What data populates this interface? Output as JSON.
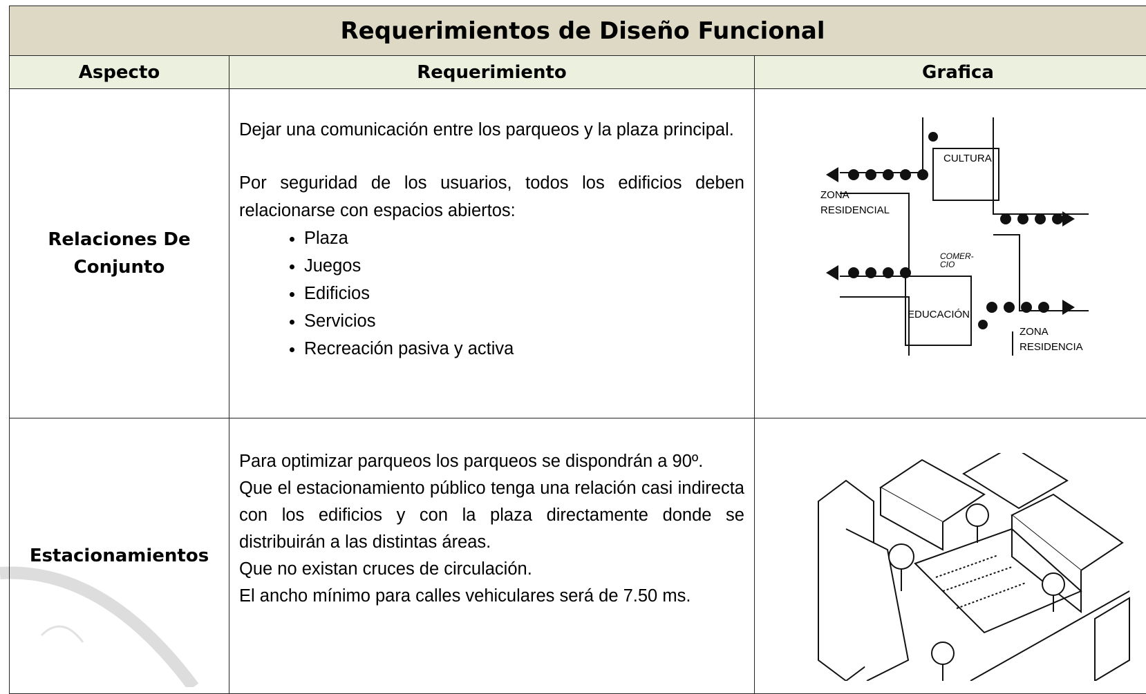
{
  "header": {
    "title": "Requerimientos de Diseño Funcional"
  },
  "table": {
    "columns": [
      "Aspecto",
      "Requerimiento",
      "Grafica"
    ],
    "rows": [
      {
        "aspect": "Relaciones De Conjunto",
        "paragraphs": [
          "Dejar una comunicación entre los parqueos y la plaza principal.",
          "Por seguridad de los usuarios, todos los edificios deben relacionarse con espacios abiertos:"
        ],
        "list": [
          "Plaza",
          "Juegos",
          "Edificios",
          "Servicios",
          "Recreación pasiva y activa"
        ],
        "graphic_labels": [
          "CULTURA",
          "ZONA",
          "RESIDENCIAL",
          "COMER-",
          "CIO",
          "EDUCACIÓN",
          "ZONA",
          "RESIDENCIA"
        ]
      },
      {
        "aspect": "Estacionamientos",
        "paragraphs": [
          "Para optimizar parqueos los parqueos se dispondrán a 90º.",
          "Que el estacionamiento público tenga una relación casi indirecta con los edificios y con la plaza directamente donde se distribuirán a las distintas áreas.",
          "Que no existan cruces de circulación.",
          "El ancho mínimo para calles vehiculares será de 7.50 ms."
        ]
      }
    ]
  }
}
